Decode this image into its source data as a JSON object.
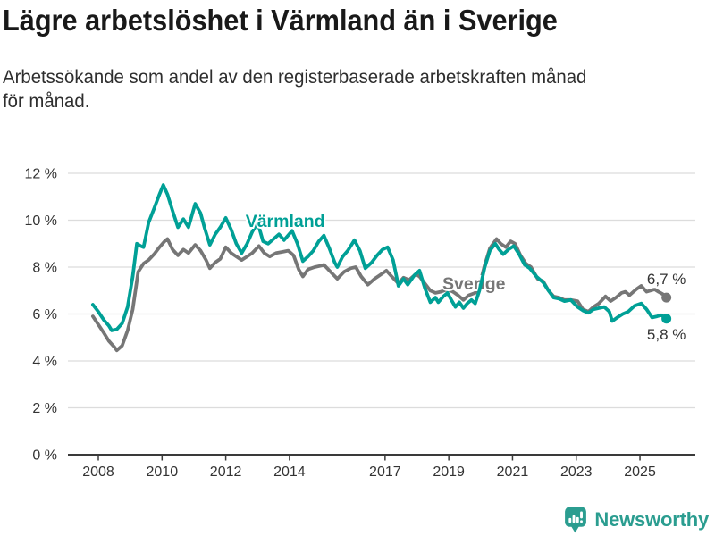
{
  "header": {
    "title": "Lägre arbetslöshet i Värmland än i Sverige",
    "subtitle_lines": [
      "Arbetssökande som andel av den registerbaserade arbetskraften månad",
      "för månad."
    ]
  },
  "chart_data": {
    "type": "line",
    "title": "Lägre arbetslöshet i Värmland än i Sverige",
    "unit": "percent of registered labour force",
    "grid": true,
    "background": "#ffffff",
    "axis_text_color": "#333333",
    "gridline_color": "#dcdcdc",
    "baseline_color": "#3a3a3a",
    "y_axis": {
      "range": [
        0,
        12
      ],
      "ticks": [
        0,
        2,
        4,
        6,
        8,
        10,
        12
      ],
      "suffix": " %"
    },
    "x_axis": {
      "range": [
        2007.8,
        2025.9
      ],
      "tick_years": [
        2008,
        2010,
        2012,
        2014,
        2017,
        2019,
        2021,
        2023,
        2025
      ],
      "tick_labels": [
        "2008",
        "2010",
        "2012",
        "2014",
        "2017",
        "2019",
        "2021",
        "2023",
        "2025"
      ]
    },
    "value_label_color": "#333333",
    "series": [
      {
        "name": "Sverige",
        "color": "#767676",
        "end_value": 6.7,
        "end_value_label": "6,7 %",
        "end_label_offset": [
          0,
          -15
        ],
        "name_label_anchor": [
          2018.8,
          7.05
        ],
        "points": [
          [
            2007.83,
            5.9
          ],
          [
            2008.0,
            5.55
          ],
          [
            2008.17,
            5.2
          ],
          [
            2008.33,
            4.85
          ],
          [
            2008.5,
            4.6
          ],
          [
            2008.58,
            4.45
          ],
          [
            2008.75,
            4.65
          ],
          [
            2008.92,
            5.3
          ],
          [
            2009.08,
            6.2
          ],
          [
            2009.25,
            7.8
          ],
          [
            2009.42,
            8.15
          ],
          [
            2009.58,
            8.3
          ],
          [
            2009.75,
            8.55
          ],
          [
            2009.92,
            8.85
          ],
          [
            2010.08,
            9.1
          ],
          [
            2010.17,
            9.2
          ],
          [
            2010.33,
            8.75
          ],
          [
            2010.5,
            8.5
          ],
          [
            2010.67,
            8.75
          ],
          [
            2010.83,
            8.6
          ],
          [
            2011.04,
            8.95
          ],
          [
            2011.21,
            8.7
          ],
          [
            2011.38,
            8.3
          ],
          [
            2011.5,
            7.95
          ],
          [
            2011.67,
            8.2
          ],
          [
            2011.83,
            8.35
          ],
          [
            2012.0,
            8.85
          ],
          [
            2012.17,
            8.6
          ],
          [
            2012.33,
            8.45
          ],
          [
            2012.5,
            8.3
          ],
          [
            2012.67,
            8.45
          ],
          [
            2012.83,
            8.6
          ],
          [
            2013.04,
            8.9
          ],
          [
            2013.21,
            8.6
          ],
          [
            2013.38,
            8.45
          ],
          [
            2013.58,
            8.6
          ],
          [
            2013.79,
            8.65
          ],
          [
            2013.96,
            8.7
          ],
          [
            2014.13,
            8.5
          ],
          [
            2014.29,
            7.9
          ],
          [
            2014.42,
            7.6
          ],
          [
            2014.58,
            7.9
          ],
          [
            2014.79,
            8.0
          ],
          [
            2014.96,
            8.05
          ],
          [
            2015.08,
            8.1
          ],
          [
            2015.29,
            7.8
          ],
          [
            2015.5,
            7.5
          ],
          [
            2015.71,
            7.8
          ],
          [
            2015.92,
            7.95
          ],
          [
            2016.08,
            8.0
          ],
          [
            2016.25,
            7.6
          ],
          [
            2016.46,
            7.25
          ],
          [
            2016.67,
            7.5
          ],
          [
            2016.83,
            7.65
          ],
          [
            2017.04,
            7.85
          ],
          [
            2017.21,
            7.6
          ],
          [
            2017.42,
            7.3
          ],
          [
            2017.58,
            7.55
          ],
          [
            2017.75,
            7.45
          ],
          [
            2017.96,
            7.7
          ],
          [
            2018.08,
            7.6
          ],
          [
            2018.25,
            7.3
          ],
          [
            2018.42,
            7.0
          ],
          [
            2018.58,
            6.9
          ],
          [
            2018.75,
            6.95
          ],
          [
            2018.96,
            7.05
          ],
          [
            2019.13,
            6.95
          ],
          [
            2019.29,
            6.8
          ],
          [
            2019.46,
            6.6
          ],
          [
            2019.63,
            6.8
          ],
          [
            2019.83,
            6.9
          ],
          [
            2019.96,
            7.2
          ],
          [
            2020.13,
            8.1
          ],
          [
            2020.29,
            8.8
          ],
          [
            2020.5,
            9.2
          ],
          [
            2020.63,
            9.0
          ],
          [
            2020.79,
            8.85
          ],
          [
            2020.94,
            9.1
          ],
          [
            2021.08,
            9.0
          ],
          [
            2021.25,
            8.5
          ],
          [
            2021.42,
            8.15
          ],
          [
            2021.58,
            8.0
          ],
          [
            2021.79,
            7.5
          ],
          [
            2021.96,
            7.4
          ],
          [
            2022.13,
            7.0
          ],
          [
            2022.29,
            6.75
          ],
          [
            2022.46,
            6.7
          ],
          [
            2022.63,
            6.6
          ],
          [
            2022.83,
            6.6
          ],
          [
            2023.04,
            6.55
          ],
          [
            2023.21,
            6.2
          ],
          [
            2023.38,
            6.1
          ],
          [
            2023.54,
            6.3
          ],
          [
            2023.71,
            6.45
          ],
          [
            2023.92,
            6.75
          ],
          [
            2024.08,
            6.55
          ],
          [
            2024.25,
            6.7
          ],
          [
            2024.42,
            6.9
          ],
          [
            2024.54,
            6.95
          ],
          [
            2024.67,
            6.8
          ],
          [
            2024.88,
            7.05
          ],
          [
            2025.04,
            7.2
          ],
          [
            2025.21,
            6.95
          ],
          [
            2025.33,
            7.0
          ],
          [
            2025.46,
            7.05
          ],
          [
            2025.58,
            6.95
          ],
          [
            2025.71,
            6.85
          ],
          [
            2025.83,
            6.7
          ]
        ]
      },
      {
        "name": "Värmland",
        "color": "#00a096",
        "end_value": 5.8,
        "end_value_label": "5,8 %",
        "end_label_offset": [
          0,
          23
        ],
        "name_label_anchor": [
          2012.62,
          9.72
        ],
        "points": [
          [
            2007.83,
            6.4
          ],
          [
            2008.0,
            6.1
          ],
          [
            2008.17,
            5.75
          ],
          [
            2008.33,
            5.5
          ],
          [
            2008.42,
            5.3
          ],
          [
            2008.58,
            5.35
          ],
          [
            2008.75,
            5.6
          ],
          [
            2008.92,
            6.3
          ],
          [
            2009.08,
            7.6
          ],
          [
            2009.21,
            9.0
          ],
          [
            2009.33,
            8.9
          ],
          [
            2009.42,
            8.85
          ],
          [
            2009.58,
            9.9
          ],
          [
            2009.75,
            10.5
          ],
          [
            2009.92,
            11.1
          ],
          [
            2010.04,
            11.5
          ],
          [
            2010.17,
            11.1
          ],
          [
            2010.33,
            10.4
          ],
          [
            2010.5,
            9.7
          ],
          [
            2010.67,
            10.05
          ],
          [
            2010.83,
            9.7
          ],
          [
            2011.04,
            10.7
          ],
          [
            2011.21,
            10.3
          ],
          [
            2011.33,
            9.7
          ],
          [
            2011.5,
            8.95
          ],
          [
            2011.67,
            9.4
          ],
          [
            2011.83,
            9.7
          ],
          [
            2012.0,
            10.1
          ],
          [
            2012.17,
            9.6
          ],
          [
            2012.33,
            9.0
          ],
          [
            2012.5,
            8.6
          ],
          [
            2012.67,
            9.0
          ],
          [
            2012.83,
            9.5
          ],
          [
            2013.0,
            9.9
          ],
          [
            2013.17,
            9.1
          ],
          [
            2013.33,
            9.0
          ],
          [
            2013.5,
            9.2
          ],
          [
            2013.67,
            9.4
          ],
          [
            2013.83,
            9.15
          ],
          [
            2014.08,
            9.55
          ],
          [
            2014.25,
            9.0
          ],
          [
            2014.42,
            8.25
          ],
          [
            2014.58,
            8.45
          ],
          [
            2014.75,
            8.7
          ],
          [
            2014.92,
            9.1
          ],
          [
            2015.08,
            9.35
          ],
          [
            2015.25,
            8.8
          ],
          [
            2015.42,
            8.2
          ],
          [
            2015.5,
            8.0
          ],
          [
            2015.67,
            8.45
          ],
          [
            2015.83,
            8.7
          ],
          [
            2016.04,
            9.15
          ],
          [
            2016.21,
            8.7
          ],
          [
            2016.38,
            7.95
          ],
          [
            2016.58,
            8.2
          ],
          [
            2016.75,
            8.5
          ],
          [
            2016.92,
            8.75
          ],
          [
            2017.08,
            8.85
          ],
          [
            2017.25,
            8.3
          ],
          [
            2017.42,
            7.2
          ],
          [
            2017.58,
            7.5
          ],
          [
            2017.71,
            7.25
          ],
          [
            2017.92,
            7.65
          ],
          [
            2018.08,
            7.85
          ],
          [
            2018.25,
            7.1
          ],
          [
            2018.42,
            6.5
          ],
          [
            2018.58,
            6.7
          ],
          [
            2018.67,
            6.5
          ],
          [
            2018.83,
            6.75
          ],
          [
            2018.96,
            6.9
          ],
          [
            2019.08,
            6.6
          ],
          [
            2019.21,
            6.3
          ],
          [
            2019.33,
            6.5
          ],
          [
            2019.46,
            6.25
          ],
          [
            2019.58,
            6.45
          ],
          [
            2019.71,
            6.6
          ],
          [
            2019.83,
            6.45
          ],
          [
            2019.96,
            7.0
          ],
          [
            2020.13,
            8.0
          ],
          [
            2020.29,
            8.7
          ],
          [
            2020.46,
            9.0
          ],
          [
            2020.58,
            8.75
          ],
          [
            2020.71,
            8.55
          ],
          [
            2020.87,
            8.75
          ],
          [
            2021.04,
            8.9
          ],
          [
            2021.21,
            8.55
          ],
          [
            2021.38,
            8.1
          ],
          [
            2021.54,
            7.95
          ],
          [
            2021.75,
            7.6
          ],
          [
            2021.96,
            7.35
          ],
          [
            2022.13,
            7.0
          ],
          [
            2022.29,
            6.7
          ],
          [
            2022.46,
            6.65
          ],
          [
            2022.63,
            6.55
          ],
          [
            2022.83,
            6.6
          ],
          [
            2023.04,
            6.3
          ],
          [
            2023.21,
            6.15
          ],
          [
            2023.38,
            6.05
          ],
          [
            2023.54,
            6.2
          ],
          [
            2023.71,
            6.25
          ],
          [
            2023.88,
            6.3
          ],
          [
            2024.04,
            6.1
          ],
          [
            2024.13,
            5.7
          ],
          [
            2024.29,
            5.85
          ],
          [
            2024.46,
            6.0
          ],
          [
            2024.63,
            6.1
          ],
          [
            2024.83,
            6.35
          ],
          [
            2025.04,
            6.45
          ],
          [
            2025.21,
            6.2
          ],
          [
            2025.38,
            5.85
          ],
          [
            2025.54,
            5.9
          ],
          [
            2025.67,
            5.95
          ],
          [
            2025.83,
            5.8
          ]
        ]
      }
    ]
  },
  "footer": {
    "brand": "Newsworthy",
    "brand_color": "#2b9d90"
  }
}
